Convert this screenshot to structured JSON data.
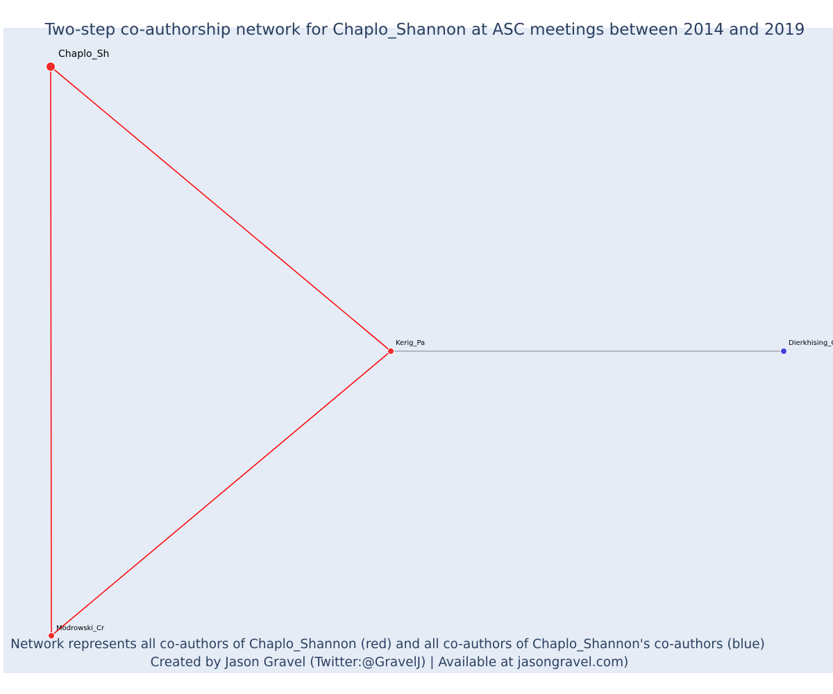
{
  "title": "Two-step co-authorship network for Chaplo_Shannon at ASC meetings between 2014 and 2019",
  "captions": [
    "Network represents all co-authors of Chaplo_Shannon (red) and all co-authors of Chaplo_Shannon's co-authors (blue)",
    "Created by Jason Gravel (Twitter:@GravelJ) | Available at jasongravel.com)"
  ],
  "colors": {
    "plot_background": "#e5ecf6",
    "direct_coauthor": "#ef2b2b",
    "second_step_coauthor": "#4040e0",
    "direct_edge": "#ff0000",
    "second_step_edge": "#7f7f8f",
    "text": "#2a3f5f"
  },
  "network": {
    "nodes": [
      {
        "id": "Chaplo_Sh",
        "label": "Chaplo_Sh",
        "group": "ego"
      },
      {
        "id": "Kerig_Pa",
        "label": "Kerig_Pa",
        "group": "direct"
      },
      {
        "id": "Modrowski_Cr",
        "label": "Modrowski_Cr",
        "group": "direct"
      },
      {
        "id": "Dierkhising_C",
        "label": "Dierkhising_C",
        "group": "second_step"
      }
    ],
    "edges": [
      {
        "source": "Chaplo_Sh",
        "target": "Kerig_Pa",
        "type": "direct"
      },
      {
        "source": "Chaplo_Sh",
        "target": "Modrowski_Cr",
        "type": "direct"
      },
      {
        "source": "Kerig_Pa",
        "target": "Modrowski_Cr",
        "type": "direct"
      },
      {
        "source": "Kerig_Pa",
        "target": "Dierkhising_C",
        "type": "second_step"
      }
    ]
  }
}
